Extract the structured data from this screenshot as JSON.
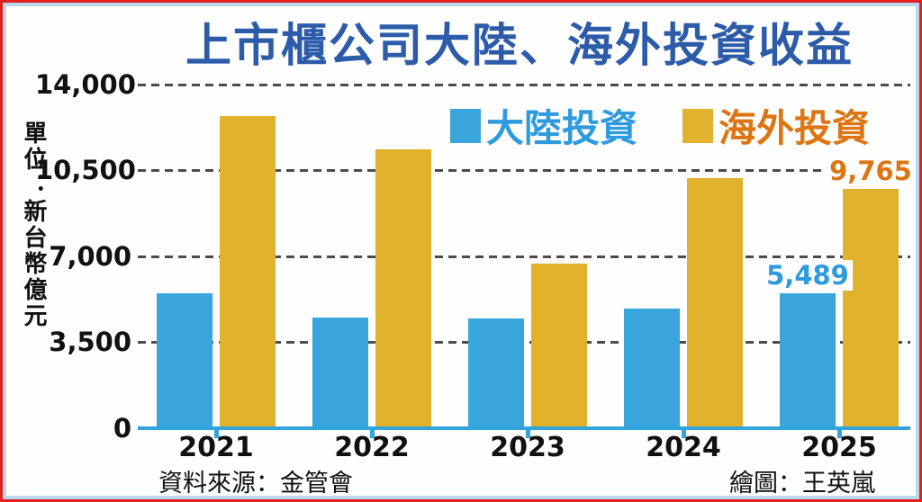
{
  "frame": {
    "outer_border_color": "#e1201f",
    "inner_border_color": "#b9d8ec",
    "background": "#fefefe"
  },
  "title": {
    "text": "上市櫃公司大陸、海外投資收益",
    "color": "#2c5ca9"
  },
  "unit_label": {
    "text": "單位：新台幣億元"
  },
  "legend": [
    {
      "label": "大陸投資",
      "swatch_color": "#39a5dc",
      "text_color": "#2d9bde"
    },
    {
      "label": "海外投資",
      "swatch_color": "#e0b22d",
      "text_color": "#dd7513"
    }
  ],
  "footer": {
    "source": "資料來源：金管會",
    "credit": "繪圖：王英嵐"
  },
  "axis": {
    "line_color": "#31a3dd",
    "gridline_color": "#4c4c4c"
  },
  "chart_data": {
    "type": "bar",
    "categories": [
      "2021",
      "2022",
      "2023",
      "2024",
      "2025"
    ],
    "series": [
      {
        "name": "大陸投資",
        "color": "#39a5dc",
        "values": [
          5500,
          4500,
          4470,
          4870,
          5489
        ]
      },
      {
        "name": "海外投資",
        "color": "#e0b22d",
        "values": [
          12700,
          11350,
          6700,
          10200,
          9765
        ]
      }
    ],
    "title": "上市櫃公司大陸、海外投資收益",
    "xlabel": "",
    "ylabel": "單位：新台幣億元",
    "yticks": [
      "14,000",
      "10,500",
      "7,000",
      "3,500",
      "0"
    ],
    "ytick_values": [
      14000,
      10500,
      7000,
      3500,
      0
    ],
    "ylim": [
      0,
      14000
    ],
    "grid": "dashed-horizontal",
    "legend_position": "top",
    "data_labels": [
      {
        "series_index": 0,
        "category": "2025",
        "text": "5,489",
        "color": "#2d9bde"
      },
      {
        "series_index": 1,
        "category": "2025",
        "text": "9,765",
        "color": "#dd7513"
      }
    ]
  }
}
